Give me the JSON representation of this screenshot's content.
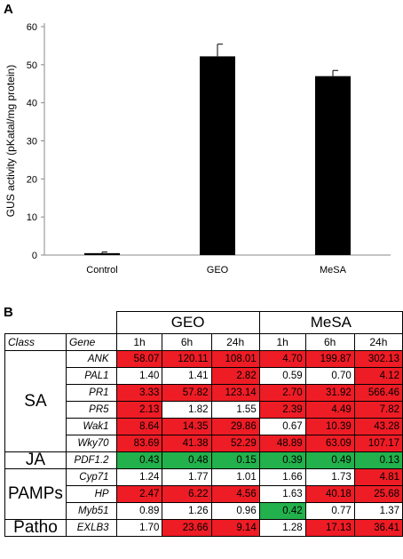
{
  "panel_a_label": "A",
  "panel_b_label": "B",
  "chart_data": {
    "type": "bar",
    "categories": [
      "Control",
      "GEO",
      "MeSA"
    ],
    "values": [
      0.5,
      52.2,
      47.0
    ],
    "errors": [
      0.3,
      3.2,
      1.5
    ],
    "ylabel": "GUS activity (pKatal/mg protein)",
    "xlabel": "",
    "ylim": [
      0,
      60
    ],
    "yticks": [
      0,
      10,
      20,
      30,
      40,
      50,
      60
    ],
    "bar_color": "#000000",
    "grid": false
  },
  "table": {
    "groups": [
      "GEO",
      "MeSA"
    ],
    "header": {
      "class": "Class",
      "gene": "Gene",
      "times": [
        "1h",
        "6h",
        "24h",
        "1h",
        "6h",
        "24h"
      ]
    },
    "colors": {
      "up": "#ee1c25",
      "down": "#22b14c",
      "none": "#ffffff"
    },
    "classes": [
      {
        "name": "SA",
        "rows": [
          {
            "gene": "ANK",
            "values": [
              "58.07",
              "120.11",
              "108.01",
              "4.70",
              "199.87",
              "302.13"
            ],
            "status": [
              "up",
              "up",
              "up",
              "up",
              "up",
              "up"
            ]
          },
          {
            "gene": "PAL1",
            "values": [
              "1.40",
              "1.41",
              "2.82",
              "0.59",
              "0.70",
              "4.12"
            ],
            "status": [
              "none",
              "none",
              "up",
              "none",
              "none",
              "up"
            ]
          },
          {
            "gene": "PR1",
            "values": [
              "3.33",
              "57.82",
              "123.14",
              "2.70",
              "31.92",
              "566.46"
            ],
            "status": [
              "up",
              "up",
              "up",
              "up",
              "up",
              "up"
            ]
          },
          {
            "gene": "PR5",
            "values": [
              "2.13",
              "1.82",
              "1.55",
              "2.39",
              "4.49",
              "7.82"
            ],
            "status": [
              "up",
              "none",
              "none",
              "up",
              "up",
              "up"
            ]
          },
          {
            "gene": "Wak1",
            "values": [
              "8.64",
              "14.35",
              "29.86",
              "0.67",
              "10.39",
              "43.28"
            ],
            "status": [
              "up",
              "up",
              "up",
              "none",
              "up",
              "up"
            ]
          },
          {
            "gene": "Wky70",
            "values": [
              "83.69",
              "41.38",
              "52.29",
              "48.89",
              "63.09",
              "107.17"
            ],
            "status": [
              "up",
              "up",
              "up",
              "up",
              "up",
              "up"
            ]
          }
        ]
      },
      {
        "name": "JA",
        "rows": [
          {
            "gene": "PDF1.2",
            "values": [
              "0.43",
              "0.48",
              "0.15",
              "0.39",
              "0.49",
              "0.13"
            ],
            "status": [
              "down",
              "down",
              "down",
              "down",
              "down",
              "down"
            ]
          }
        ]
      },
      {
        "name": "PAMPs",
        "rows": [
          {
            "gene": "Cyp71",
            "values": [
              "1.24",
              "1.77",
              "1.01",
              "1.66",
              "1.73",
              "4.81"
            ],
            "status": [
              "none",
              "none",
              "none",
              "none",
              "none",
              "up"
            ]
          },
          {
            "gene": "HP",
            "values": [
              "2.47",
              "6.22",
              "4.56",
              "1.63",
              "40.18",
              "25.68"
            ],
            "status": [
              "up",
              "up",
              "up",
              "none",
              "up",
              "up"
            ]
          },
          {
            "gene": "Myb51",
            "values": [
              "0.89",
              "1.26",
              "0.96",
              "0.42",
              "0.77",
              "1.37"
            ],
            "status": [
              "none",
              "none",
              "none",
              "down",
              "none",
              "none"
            ]
          }
        ]
      },
      {
        "name": "Patho",
        "rows": [
          {
            "gene": "EXLB3",
            "values": [
              "1.70",
              "23.66",
              "9.14",
              "1.28",
              "17.13",
              "36.41"
            ],
            "status": [
              "none",
              "up",
              "up",
              "none",
              "up",
              "up"
            ]
          }
        ]
      }
    ]
  }
}
